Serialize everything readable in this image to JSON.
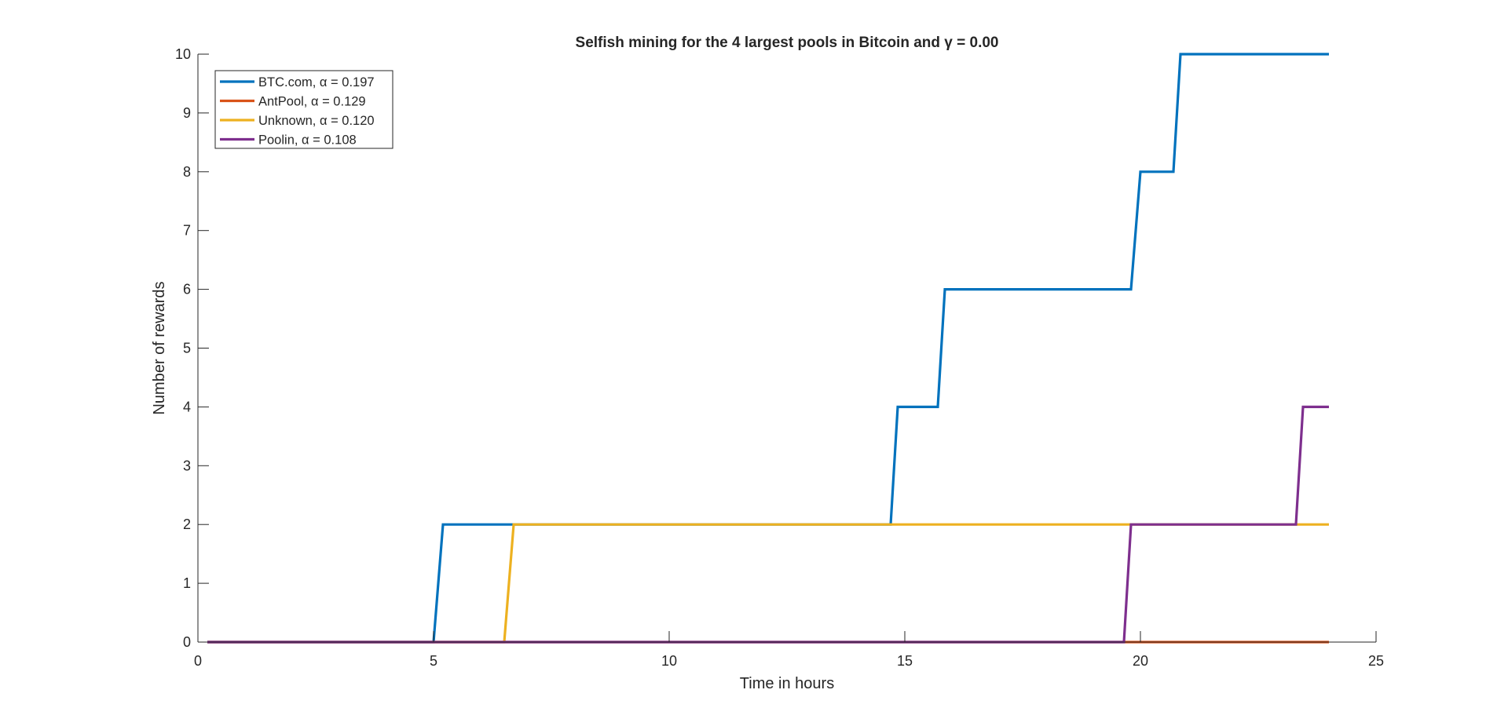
{
  "chart_data": {
    "type": "line",
    "title": "Selfish mining for the 4 largest pools in Bitcoin and γ = 0.00",
    "xlabel": "Time in hours",
    "ylabel": "Number of rewards",
    "xlim": [
      0,
      25
    ],
    "ylim": [
      0,
      10
    ],
    "xticks": [
      0,
      5,
      10,
      15,
      20,
      25
    ],
    "yticks": [
      0,
      1,
      2,
      3,
      4,
      5,
      6,
      7,
      8,
      9,
      10
    ],
    "grid": false,
    "legend_position": "top-left",
    "series": [
      {
        "name": "BTC.com, α = 0.197",
        "color": "#0072BD",
        "x": [
          0.2,
          5.0,
          5.2,
          6.7,
          14.7,
          14.85,
          15.7,
          15.85,
          19.8,
          20.0,
          20.7,
          20.85,
          24.0
        ],
        "y": [
          0,
          0,
          2,
          2,
          2,
          4,
          4,
          6,
          6,
          8,
          8,
          10,
          10
        ]
      },
      {
        "name": "AntPool, α = 0.129",
        "color": "#D95319",
        "x": [
          0.2,
          24.0
        ],
        "y": [
          0,
          0
        ]
      },
      {
        "name": "Unknown, α = 0.120",
        "color": "#EDB120",
        "x": [
          0.2,
          6.5,
          6.7,
          24.0
        ],
        "y": [
          0,
          0,
          2,
          2
        ]
      },
      {
        "name": "Poolin, α = 0.108",
        "color": "#7E2F8E",
        "x": [
          0.2,
          19.65,
          19.8,
          23.3,
          23.45,
          24.0
        ],
        "y": [
          0,
          0,
          2,
          2,
          4,
          4
        ]
      }
    ]
  }
}
